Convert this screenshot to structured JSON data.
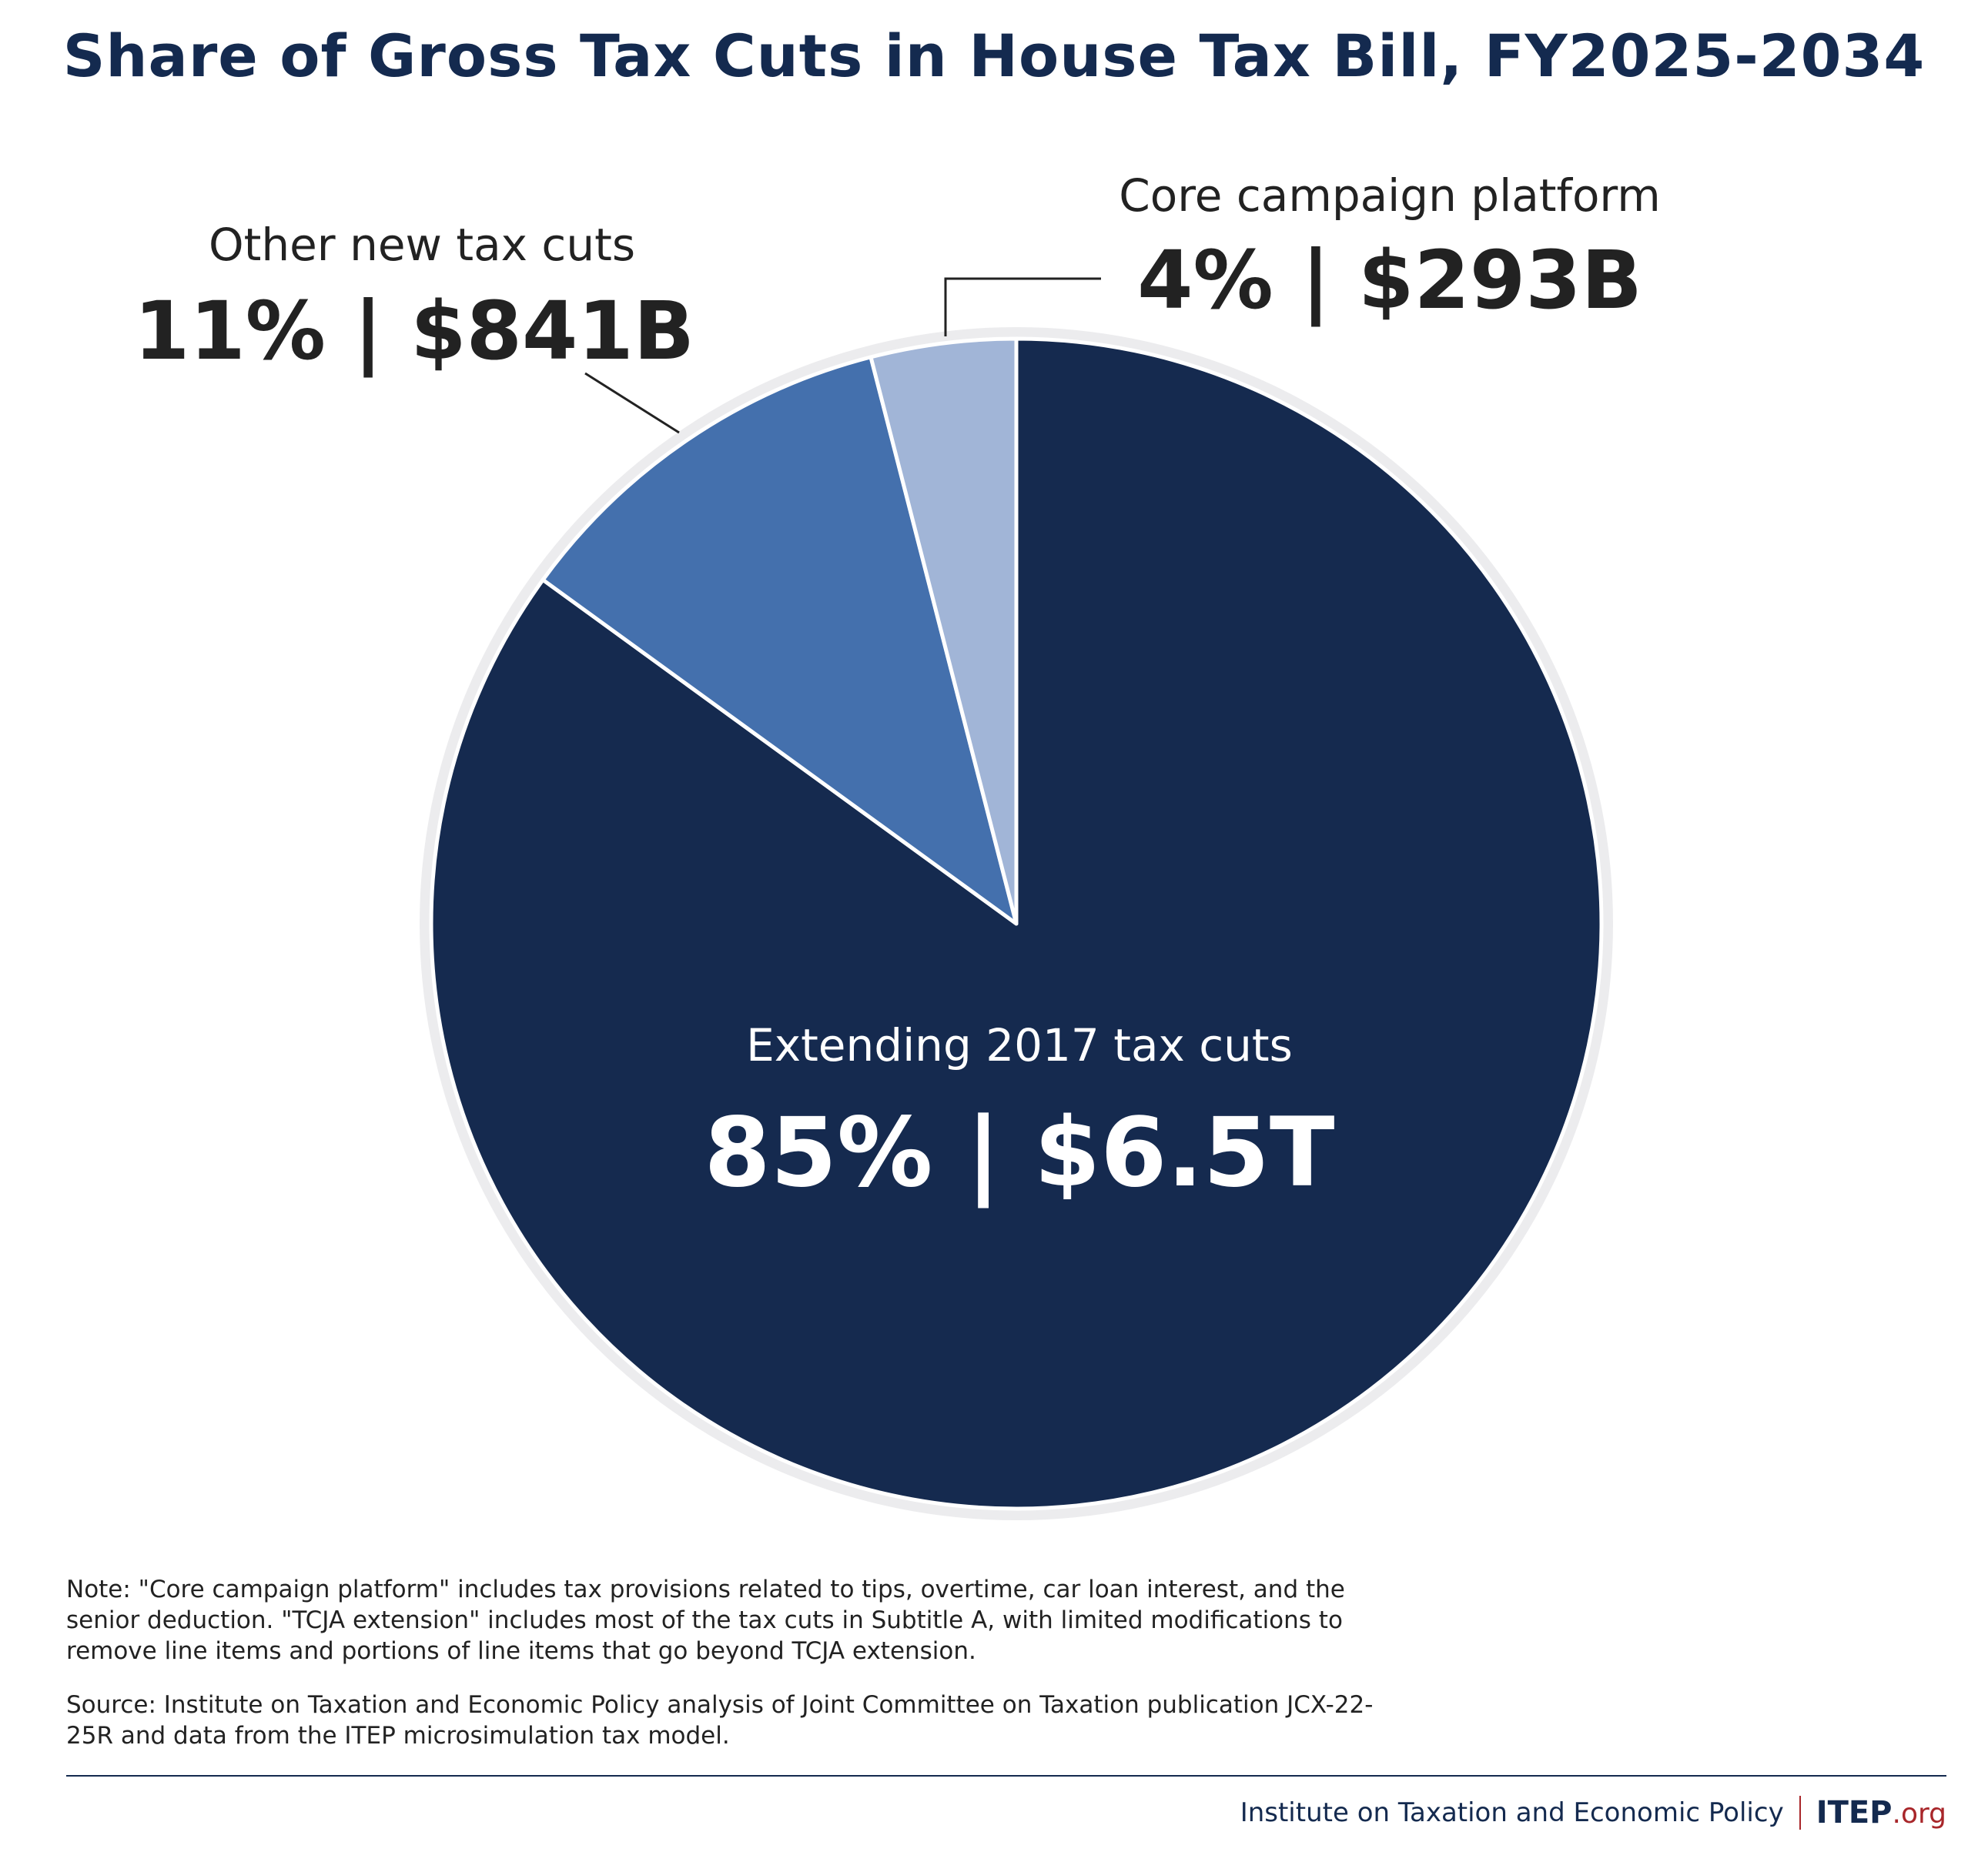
{
  "title": "Share of Gross Tax Cuts in House Tax Bill, FY2025-2034",
  "chart_data": {
    "type": "pie",
    "start_angle_deg": 0,
    "direction": "clockwise",
    "slices": [
      {
        "label": "Extending 2017 tax cuts",
        "value_label": "85% | $6.5T",
        "percent": 85,
        "amount": "$6.5T",
        "color": "#152a4f"
      },
      {
        "label": "Other new tax cuts",
        "value_label": "11% | $841B",
        "percent": 11,
        "amount": "$841B",
        "color": "#4470ad"
      },
      {
        "label": "Core campaign platform",
        "value_label": "4% | $293B",
        "percent": 4,
        "amount": "$293B",
        "color": "#a1b5d7"
      }
    ],
    "legend": "none"
  },
  "colors": {
    "title": "#142a4f",
    "ring": "#ececee",
    "leader_line": "#222222",
    "accent": "#a8262a"
  },
  "note": "Note: \"Core campaign platform\" includes tax provisions related to tips, overtime, car loan interest, and the senior deduction. \"TCJA extension\" includes most of the tax cuts in Subtitle A, with limited modifications to remove line items and portions of line items that go beyond TCJA extension.",
  "source": "Source: Institute on Taxation and Economic Policy analysis of Joint Committee on Taxation publication JCX-22-25R and data from the ITEP microsimulation tax model.",
  "footer": {
    "org_name": "Institute on Taxation and Economic Policy",
    "logo_main": "ITEP",
    "logo_suffix": ".org"
  }
}
